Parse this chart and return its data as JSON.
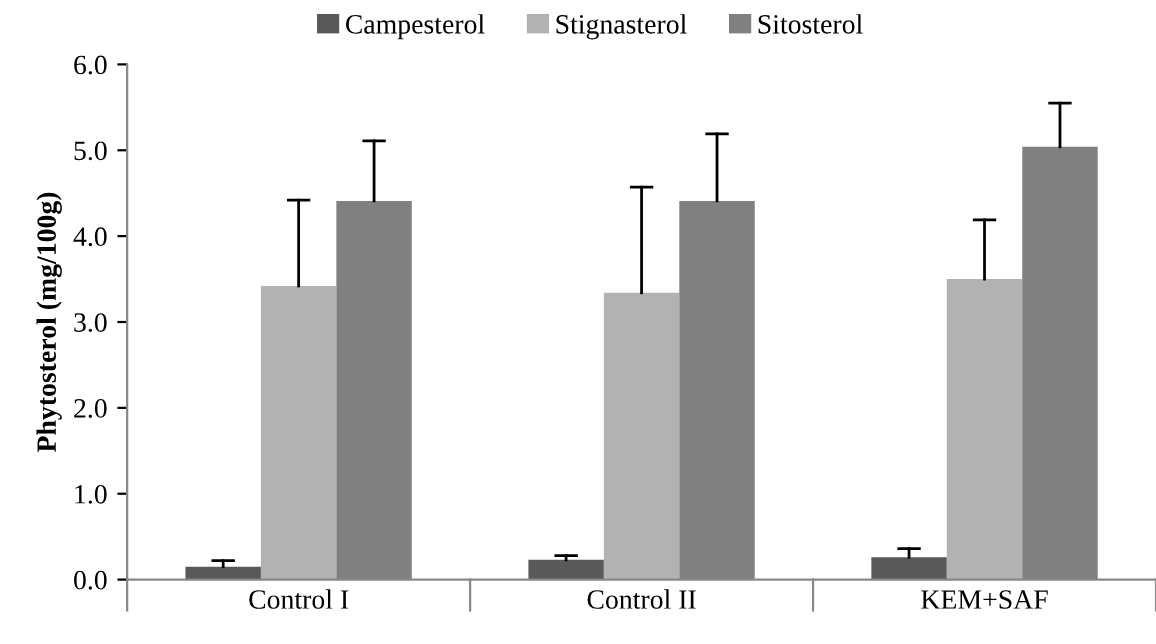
{
  "chart_data": {
    "type": "bar",
    "ylabel": "Phytosterol (mg/100g)",
    "categories": [
      "Control I",
      "Control II",
      "KEM+SAF"
    ],
    "series": [
      {
        "name": "Campesterol",
        "color": "#595959",
        "values": [
          0.15,
          0.23,
          0.26
        ],
        "errors": [
          [
            0.15,
            0.22
          ],
          [
            0.23,
            0.28
          ],
          [
            0.26,
            0.36
          ]
        ]
      },
      {
        "name": "Stignasterol",
        "color": "#b2b2b2",
        "values": [
          3.42,
          3.34,
          3.5
        ],
        "errors": [
          [
            3.42,
            4.42
          ],
          [
            3.34,
            4.57
          ],
          [
            3.5,
            4.19
          ]
        ]
      },
      {
        "name": "Sitosterol",
        "color": "#808080",
        "values": [
          4.41,
          4.41,
          5.04
        ],
        "errors": [
          [
            4.41,
            5.11
          ],
          [
            4.41,
            5.19
          ],
          [
            5.04,
            5.55
          ]
        ]
      }
    ],
    "ylim": [
      0,
      6
    ],
    "yticks": [
      {
        "value": 0,
        "label": "0.0"
      },
      {
        "value": 1,
        "label": "1.0"
      },
      {
        "value": 2,
        "label": "2.0"
      },
      {
        "value": 3,
        "label": "3.0"
      },
      {
        "value": 4,
        "label": "4.0"
      },
      {
        "value": 5,
        "label": "5.0"
      },
      {
        "value": 6,
        "label": "6.0"
      }
    ],
    "legend": "top",
    "grid": false
  }
}
